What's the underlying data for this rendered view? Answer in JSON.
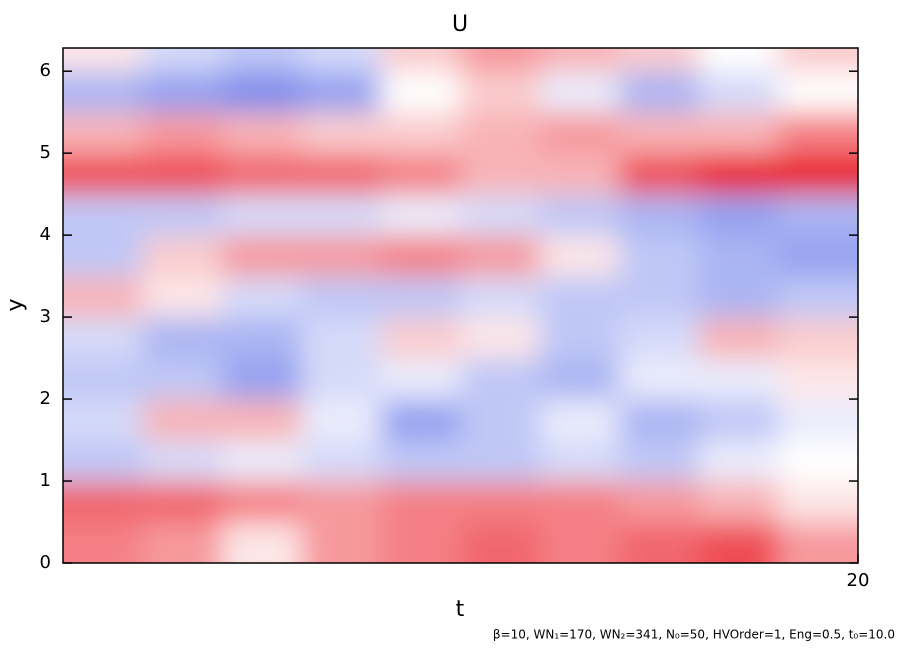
{
  "chart_data": {
    "type": "heatmap",
    "title": "U",
    "x_label": "t",
    "y_label": "y",
    "footnote": "β=10, WN₁=170, WN₂=341, N₀=50, HVOrder=1, Eng=0.5, t₀=10.0",
    "xlim": [
      10,
      20
    ],
    "xticks": [
      20
    ],
    "ylim": [
      0,
      6.283
    ],
    "yticks": [
      0,
      1,
      2,
      3,
      4,
      5,
      6
    ],
    "colors": {
      "negative": "#2b45e0",
      "zero": "#ffffff",
      "positive": "#e8000b"
    },
    "zlim": [
      -1,
      1
    ],
    "x": [
      10.5,
      11.5,
      12.5,
      13.5,
      14.5,
      15.5,
      16.5,
      17.5,
      18.5,
      19.5
    ],
    "y": [
      0.25,
      0.75,
      1.25,
      1.75,
      2.25,
      2.75,
      3.25,
      3.75,
      4.25,
      4.75,
      5.25,
      5.75,
      6.25
    ],
    "z": [
      [
        0.5,
        0.4,
        0.1,
        0.4,
        0.5,
        0.6,
        0.5,
        0.6,
        0.7,
        0.4
      ],
      [
        0.6,
        0.6,
        0.5,
        0.4,
        0.5,
        0.5,
        0.5,
        0.4,
        0.3,
        0.1
      ],
      [
        -0.3,
        -0.2,
        -0.1,
        -0.2,
        -0.3,
        -0.3,
        -0.2,
        -0.3,
        -0.1,
        0
      ],
      [
        -0.2,
        0.3,
        0.3,
        -0.1,
        -0.5,
        -0.3,
        -0.1,
        -0.4,
        -0.3,
        -0.1
      ],
      [
        -0.3,
        -0.3,
        -0.5,
        -0.2,
        -0.1,
        -0.3,
        -0.4,
        -0.1,
        -0.1,
        0.1
      ],
      [
        -0.2,
        -0.4,
        -0.4,
        -0.2,
        0.2,
        0.1,
        -0.3,
        -0.2,
        0.3,
        0.2
      ],
      [
        0.3,
        0.1,
        -0.2,
        -0.3,
        -0.3,
        -0.2,
        -0.3,
        -0.3,
        -0.4,
        -0.3
      ],
      [
        -0.3,
        0.2,
        0.4,
        0.4,
        0.5,
        0.4,
        0.1,
        -0.3,
        -0.4,
        -0.5
      ],
      [
        -0.3,
        -0.3,
        -0.2,
        -0.2,
        -0.1,
        -0.2,
        -0.3,
        -0.4,
        -0.5,
        -0.4
      ],
      [
        0.7,
        0.7,
        0.6,
        0.6,
        0.5,
        0.3,
        0.3,
        0.7,
        0.9,
        0.9
      ],
      [
        0.3,
        0.4,
        0.3,
        0.2,
        0.2,
        0.3,
        0.4,
        0.3,
        0.3,
        0.5
      ],
      [
        -0.4,
        -0.5,
        -0.6,
        -0.5,
        0,
        0.2,
        -0.1,
        -0.4,
        -0.2,
        0
      ],
      [
        0.1,
        -0.2,
        -0.3,
        -0.2,
        0.2,
        0.4,
        0.3,
        0.2,
        0,
        0.2
      ]
    ]
  }
}
